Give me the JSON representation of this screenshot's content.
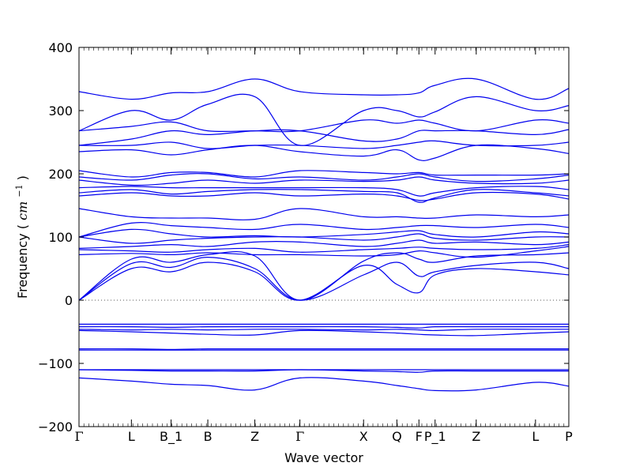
{
  "chart_data": {
    "type": "line",
    "title": "",
    "xlabel": "Wave vector",
    "ylabel": "Frequency",
    "ylabel_unit": "cm",
    "ylabel_unit_exp": "−1",
    "ylim": [
      -200,
      400
    ],
    "yticks": [
      -200,
      -100,
      0,
      100,
      200,
      300,
      400
    ],
    "ytick_labels": [
      "−200",
      "−100",
      "0",
      "100",
      "200",
      "300",
      "400"
    ],
    "xlim": [
      0,
      1
    ],
    "high_symmetry_points": [
      {
        "label": "Γ",
        "x": 0.0
      },
      {
        "label": "L",
        "x": 0.107
      },
      {
        "label": "B_1",
        "x": 0.188
      },
      {
        "label": "B",
        "x": 0.263
      },
      {
        "label": "Z",
        "x": 0.359
      },
      {
        "label": "Γ",
        "x": 0.451
      },
      {
        "label": "X",
        "x": 0.581
      },
      {
        "label": "Q",
        "x": 0.649
      },
      {
        "label": "F",
        "x": 0.694
      },
      {
        "label": "P_1",
        "x": 0.727
      },
      {
        "label": "Z",
        "x": 0.811
      },
      {
        "label": "L",
        "x": 0.932
      },
      {
        "label": "P",
        "x": 1.0
      }
    ],
    "grid": false,
    "zero_line": "dotted",
    "line_color": "#0000ee",
    "series": [
      {
        "x": [
          0,
          0.107,
          0.188,
          0.263,
          0.359,
          0.451,
          0.581,
          0.649,
          0.694,
          0.727,
          0.811,
          0.932,
          1.0
        ],
        "y": [
          0,
          50,
          45,
          60,
          45,
          0,
          55,
          25,
          12,
          40,
          50,
          45,
          40
        ]
      },
      {
        "x": [
          0,
          0.107,
          0.188,
          0.263,
          0.359,
          0.451,
          0.581,
          0.649,
          0.694,
          0.727,
          0.811,
          0.932,
          1.0
        ],
        "y": [
          0,
          58,
          52,
          68,
          50,
          0,
          40,
          60,
          38,
          45,
          55,
          60,
          50
        ]
      },
      {
        "x": [
          0,
          0.107,
          0.188,
          0.263,
          0.359,
          0.451,
          0.581,
          0.649,
          0.694,
          0.727,
          0.811,
          0.932,
          1.0
        ],
        "y": [
          0,
          65,
          60,
          72,
          70,
          0,
          62,
          75,
          65,
          60,
          70,
          72,
          75
        ]
      },
      {
        "x": [
          0,
          0.107,
          0.188,
          0.263,
          0.359,
          0.451,
          0.581,
          0.649,
          0.694,
          0.727,
          0.811,
          0.932,
          1.0
        ],
        "y": [
          72,
          74,
          72,
          75,
          72,
          72,
          70,
          72,
          78,
          75,
          68,
          78,
          85
        ]
      },
      {
        "x": [
          0,
          0.107,
          0.188,
          0.263,
          0.359,
          0.451,
          0.581,
          0.649,
          0.694,
          0.727,
          0.811,
          0.932,
          1.0
        ],
        "y": [
          80,
          78,
          76,
          80,
          82,
          76,
          80,
          82,
          84,
          82,
          80,
          82,
          88
        ]
      },
      {
        "x": [
          0,
          0.107,
          0.188,
          0.263,
          0.359,
          0.451,
          0.581,
          0.649,
          0.694,
          0.727,
          0.811,
          0.932,
          1.0
        ],
        "y": [
          82,
          85,
          88,
          85,
          92,
          92,
          85,
          90,
          95,
          90,
          92,
          88,
          92
        ]
      },
      {
        "x": [
          0,
          0.107,
          0.188,
          0.263,
          0.359,
          0.451,
          0.581,
          0.649,
          0.694,
          0.727,
          0.811,
          0.932,
          1.0
        ],
        "y": [
          100,
          90,
          95,
          98,
          100,
          100,
          95,
          100,
          105,
          98,
          95,
          100,
          100
        ]
      },
      {
        "x": [
          0,
          0.107,
          0.188,
          0.263,
          0.359,
          0.451,
          0.581,
          0.649,
          0.694,
          0.727,
          0.811,
          0.932,
          1.0
        ],
        "y": [
          100,
          112,
          105,
          100,
          102,
          100,
          104,
          108,
          110,
          104,
          100,
          108,
          105
        ]
      },
      {
        "x": [
          0,
          0.107,
          0.188,
          0.263,
          0.359,
          0.451,
          0.581,
          0.649,
          0.694,
          0.727,
          0.811,
          0.932,
          1.0
        ],
        "y": [
          100,
          122,
          118,
          115,
          112,
          120,
          112,
          115,
          118,
          118,
          115,
          120,
          115
        ]
      },
      {
        "x": [
          0,
          0.107,
          0.188,
          0.263,
          0.359,
          0.451,
          0.581,
          0.649,
          0.694,
          0.727,
          0.811,
          0.932,
          1.0
        ],
        "y": [
          145,
          132,
          130,
          130,
          128,
          145,
          132,
          132,
          130,
          130,
          135,
          132,
          135
        ]
      },
      {
        "x": [
          0,
          0.107,
          0.188,
          0.263,
          0.359,
          0.451,
          0.581,
          0.649,
          0.694,
          0.727,
          0.811,
          0.932,
          1.0
        ],
        "y": [
          165,
          170,
          165,
          165,
          170,
          165,
          168,
          165,
          158,
          160,
          170,
          168,
          160
        ]
      },
      {
        "x": [
          0,
          0.107,
          0.188,
          0.263,
          0.359,
          0.451,
          0.581,
          0.649,
          0.694,
          0.727,
          0.811,
          0.932,
          1.0
        ],
        "y": [
          170,
          175,
          168,
          172,
          175,
          175,
          172,
          170,
          155,
          162,
          175,
          170,
          165
        ]
      },
      {
        "x": [
          0,
          0.107,
          0.188,
          0.263,
          0.359,
          0.451,
          0.581,
          0.649,
          0.694,
          0.727,
          0.811,
          0.932,
          1.0
        ],
        "y": [
          178,
          180,
          178,
          178,
          178,
          178,
          178,
          175,
          165,
          170,
          178,
          180,
          175
        ]
      },
      {
        "x": [
          0,
          0.107,
          0.188,
          0.263,
          0.359,
          0.451,
          0.581,
          0.649,
          0.694,
          0.727,
          0.811,
          0.932,
          1.0
        ],
        "y": [
          190,
          182,
          185,
          190,
          185,
          190,
          188,
          190,
          195,
          190,
          185,
          185,
          190
        ]
      },
      {
        "x": [
          0,
          0.107,
          0.188,
          0.263,
          0.359,
          0.451,
          0.581,
          0.649,
          0.694,
          0.727,
          0.811,
          0.932,
          1.0
        ],
        "y": [
          195,
          190,
          198,
          200,
          192,
          195,
          190,
          195,
          200,
          195,
          188,
          192,
          198
        ]
      },
      {
        "x": [
          0,
          0.107,
          0.188,
          0.263,
          0.359,
          0.451,
          0.581,
          0.649,
          0.694,
          0.727,
          0.811,
          0.932,
          1.0
        ],
        "y": [
          205,
          195,
          202,
          202,
          195,
          205,
          202,
          200,
          202,
          198,
          198,
          198,
          200
        ]
      },
      {
        "x": [
          0,
          0.107,
          0.188,
          0.263,
          0.359,
          0.451,
          0.581,
          0.649,
          0.694,
          0.727,
          0.811,
          0.932,
          1.0
        ],
        "y": [
          235,
          238,
          230,
          238,
          245,
          235,
          228,
          238,
          222,
          225,
          245,
          240,
          232
        ]
      },
      {
        "x": [
          0,
          0.107,
          0.188,
          0.263,
          0.359,
          0.451,
          0.581,
          0.649,
          0.694,
          0.727,
          0.811,
          0.932,
          1.0
        ],
        "y": [
          245,
          245,
          250,
          240,
          245,
          245,
          240,
          245,
          250,
          252,
          245,
          245,
          250
        ]
      },
      {
        "x": [
          0,
          0.107,
          0.188,
          0.263,
          0.359,
          0.451,
          0.581,
          0.649,
          0.694,
          0.727,
          0.811,
          0.932,
          1.0
        ],
        "y": [
          245,
          255,
          268,
          262,
          268,
          268,
          252,
          255,
          268,
          268,
          268,
          262,
          270
        ]
      },
      {
        "x": [
          0,
          0.107,
          0.188,
          0.263,
          0.359,
          0.451,
          0.581,
          0.649,
          0.694,
          0.727,
          0.811,
          0.932,
          1.0
        ],
        "y": [
          268,
          275,
          282,
          268,
          268,
          268,
          285,
          280,
          285,
          280,
          268,
          285,
          280
        ]
      },
      {
        "x": [
          0,
          0.107,
          0.188,
          0.263,
          0.359,
          0.451,
          0.581,
          0.649,
          0.694,
          0.727,
          0.811,
          0.932,
          1.0
        ],
        "y": [
          268,
          300,
          285,
          310,
          322,
          245,
          300,
          300,
          290,
          298,
          322,
          300,
          308
        ]
      },
      {
        "x": [
          0,
          0.107,
          0.188,
          0.263,
          0.359,
          0.451,
          0.581,
          0.649,
          0.694,
          0.727,
          0.811,
          0.932,
          1.0
        ],
        "y": [
          330,
          318,
          328,
          330,
          350,
          330,
          325,
          325,
          328,
          340,
          350,
          318,
          335
        ]
      },
      {
        "x": [
          0,
          0.107,
          0.188,
          0.263,
          0.359,
          0.451,
          0.581,
          0.649,
          0.694,
          0.727,
          0.811,
          0.932,
          1.0
        ],
        "y": [
          -38,
          -38,
          -38,
          -38,
          -38,
          -38,
          -38,
          -38,
          -38,
          -38,
          -38,
          -38,
          -38
        ]
      },
      {
        "x": [
          0,
          0.107,
          0.188,
          0.263,
          0.359,
          0.451,
          0.581,
          0.649,
          0.694,
          0.727,
          0.811,
          0.932,
          1.0
        ],
        "y": [
          -42,
          -42,
          -43,
          -42,
          -42,
          -42,
          -42,
          -43,
          -44,
          -42,
          -42,
          -42,
          -42
        ]
      },
      {
        "x": [
          0,
          0.107,
          0.188,
          0.263,
          0.359,
          0.451,
          0.581,
          0.649,
          0.694,
          0.727,
          0.811,
          0.932,
          1.0
        ],
        "y": [
          -46,
          -47,
          -46,
          -47,
          -46,
          -46,
          -47,
          -46,
          -47,
          -48,
          -46,
          -46,
          -46
        ]
      },
      {
        "x": [
          0,
          0.107,
          0.188,
          0.263,
          0.359,
          0.451,
          0.581,
          0.649,
          0.694,
          0.727,
          0.811,
          0.932,
          1.0
        ],
        "y": [
          -48,
          -50,
          -52,
          -54,
          -55,
          -48,
          -50,
          -52,
          -54,
          -55,
          -56,
          -52,
          -50
        ]
      },
      {
        "x": [
          0,
          0.107,
          0.188,
          0.263,
          0.359,
          0.451,
          0.581,
          0.649,
          0.694,
          0.727,
          0.811,
          0.932,
          1.0
        ],
        "y": [
          -77,
          -77,
          -78,
          -77,
          -77,
          -77,
          -77,
          -77,
          -77,
          -77,
          -77,
          -77,
          -77
        ]
      },
      {
        "x": [
          0,
          0.107,
          0.188,
          0.263,
          0.359,
          0.451,
          0.581,
          0.649,
          0.694,
          0.727,
          0.811,
          0.932,
          1.0
        ],
        "y": [
          -79,
          -79,
          -79,
          -79,
          -79,
          -79,
          -79,
          -79,
          -79,
          -79,
          -79,
          -79,
          -79
        ]
      },
      {
        "x": [
          0,
          0.107,
          0.188,
          0.263,
          0.359,
          0.451,
          0.581,
          0.649,
          0.694,
          0.727,
          0.811,
          0.932,
          1.0
        ],
        "y": [
          -110,
          -110,
          -110,
          -110,
          -110,
          -110,
          -110,
          -110,
          -110,
          -110,
          -110,
          -110,
          -110
        ]
      },
      {
        "x": [
          0,
          0.107,
          0.188,
          0.263,
          0.359,
          0.451,
          0.581,
          0.649,
          0.694,
          0.727,
          0.811,
          0.932,
          1.0
        ],
        "y": [
          -110,
          -111,
          -112,
          -112,
          -112,
          -110,
          -112,
          -113,
          -114,
          -112,
          -112,
          -112,
          -112
        ]
      },
      {
        "x": [
          0,
          0.107,
          0.188,
          0.263,
          0.359,
          0.451,
          0.581,
          0.649,
          0.694,
          0.727,
          0.811,
          0.932,
          1.0
        ],
        "y": [
          -123,
          -128,
          -133,
          -135,
          -142,
          -123,
          -128,
          -135,
          -140,
          -143,
          -142,
          -130,
          -136
        ]
      }
    ]
  }
}
